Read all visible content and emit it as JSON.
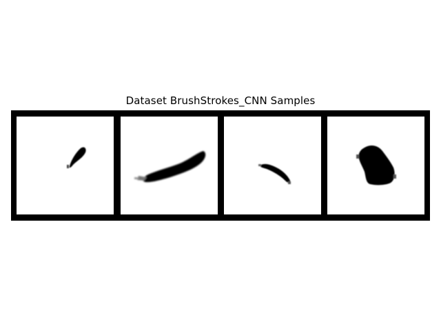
{
  "figure": {
    "title": "Dataset BrushStrokes_CNN Samples"
  },
  "samples": [
    {
      "stroke_shape": "small-teardrop-dot",
      "ink_color": "#000000"
    },
    {
      "stroke_shape": "long-diagonal-stroke",
      "ink_color": "#000000"
    },
    {
      "stroke_shape": "thin-curved-stroke",
      "ink_color": "#000000"
    },
    {
      "stroke_shape": "large-blob",
      "ink_color": "#000000"
    }
  ]
}
